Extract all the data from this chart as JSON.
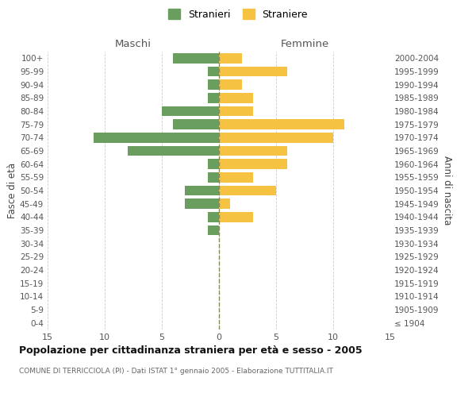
{
  "age_groups": [
    "0-4",
    "5-9",
    "10-14",
    "15-19",
    "20-24",
    "25-29",
    "30-34",
    "35-39",
    "40-44",
    "45-49",
    "50-54",
    "55-59",
    "60-64",
    "65-69",
    "70-74",
    "75-79",
    "80-84",
    "85-89",
    "90-94",
    "95-99",
    "100+"
  ],
  "birth_years": [
    "2000-2004",
    "1995-1999",
    "1990-1994",
    "1985-1989",
    "1980-1984",
    "1975-1979",
    "1970-1974",
    "1965-1969",
    "1960-1964",
    "1955-1959",
    "1950-1954",
    "1945-1949",
    "1940-1944",
    "1935-1939",
    "1930-1934",
    "1925-1929",
    "1920-1924",
    "1915-1919",
    "1910-1914",
    "1905-1909",
    "≤ 1904"
  ],
  "males": [
    4,
    1,
    1,
    1,
    5,
    4,
    11,
    8,
    1,
    1,
    3,
    3,
    1,
    1,
    0,
    0,
    0,
    0,
    0,
    0,
    0
  ],
  "females": [
    2,
    6,
    2,
    3,
    3,
    11,
    10,
    6,
    6,
    3,
    5,
    1,
    3,
    0,
    0,
    0,
    0,
    0,
    0,
    0,
    0
  ],
  "male_color": "#6a9e5f",
  "female_color": "#f5c242",
  "male_label": "Stranieri",
  "female_label": "Straniere",
  "title": "Popolazione per cittadinanza straniera per età e sesso - 2005",
  "subtitle": "COMUNE DI TERRICCIOLA (PI) - Dati ISTAT 1° gennaio 2005 - Elaborazione TUTTITALIA.IT",
  "xlabel_left": "Maschi",
  "xlabel_right": "Femmine",
  "ylabel_left": "Fasce di età",
  "ylabel_right": "Anni di nascita",
  "xlim": 15,
  "background_color": "#ffffff",
  "grid_color": "#cccccc"
}
